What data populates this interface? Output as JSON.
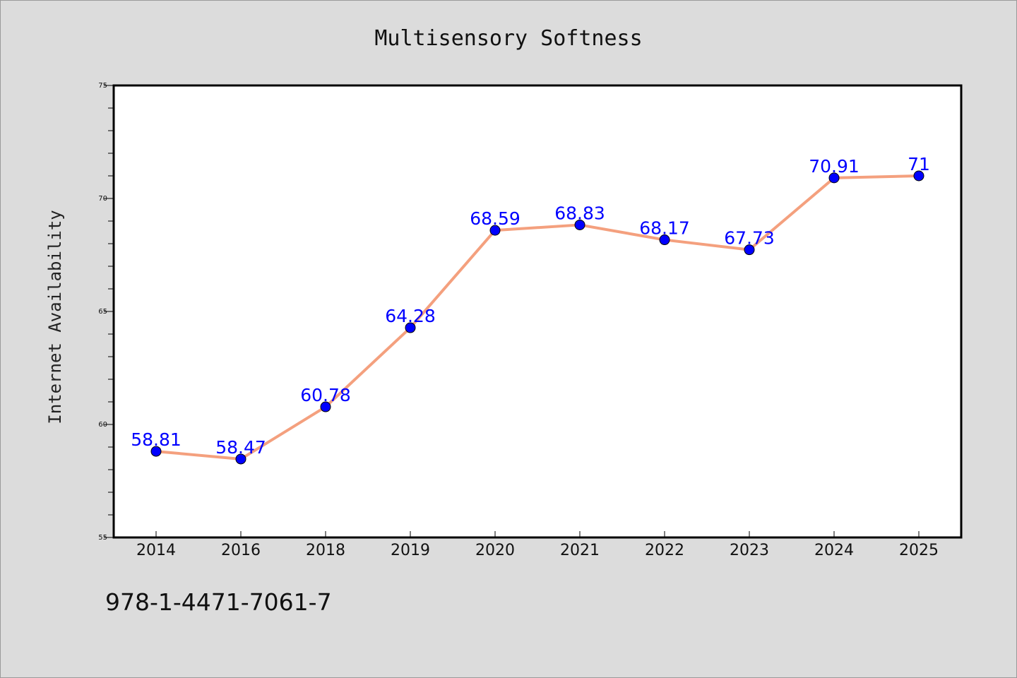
{
  "chart_data": {
    "type": "line",
    "title": "Multisensory Softness",
    "xlabel": "",
    "ylabel": "Internet Availability",
    "categories": [
      "2014",
      "2016",
      "2018",
      "2019",
      "2020",
      "2021",
      "2022",
      "2023",
      "2024",
      "2025"
    ],
    "series": [
      {
        "values": [
          58.81,
          58.47,
          60.78,
          64.28,
          68.59,
          68.83,
          68.17,
          67.73,
          70.91,
          71
        ],
        "data_labels": [
          "58.81",
          "58.47",
          "60.78",
          "64.28",
          "68.59",
          "68.83",
          "68.17",
          "67.73",
          "70.91",
          "71"
        ],
        "line_color": "#f4a07e",
        "marker_color": "#0000ff"
      }
    ],
    "ylim": [
      55,
      75
    ],
    "yticks": [
      "55",
      "60",
      "65",
      "70",
      "75"
    ],
    "grid": false,
    "legend": "none"
  },
  "footer": {
    "isbn": "978-1-4471-7061-7"
  },
  "colors": {
    "background": "#dcdcdc",
    "plot_background": "#ffffff",
    "line": "#f4a07e",
    "marker": "#0000ff",
    "data_label": "#0000ff"
  }
}
